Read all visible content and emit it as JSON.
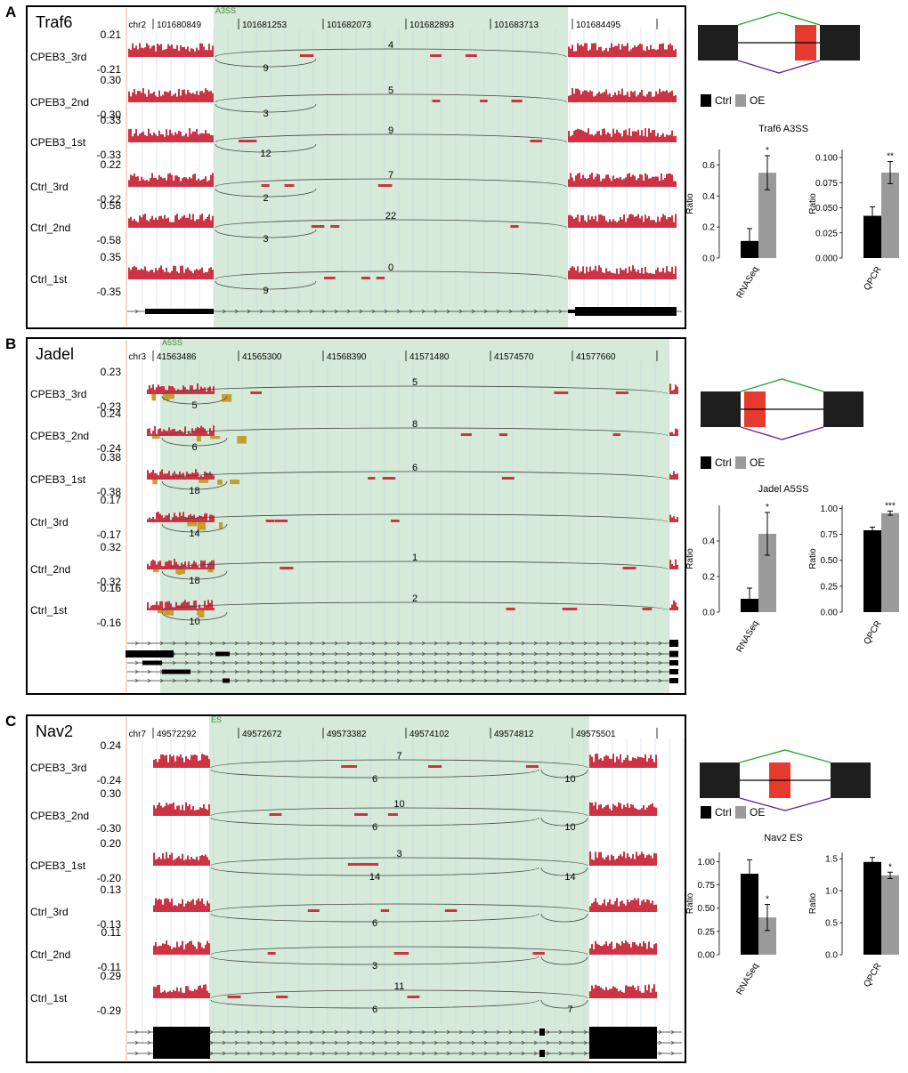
{
  "colors": {
    "cov": "#cc3344",
    "neg": "#c2a030",
    "shade": "#d5ead8",
    "ctrl": "#000000",
    "oe": "#9a9a9a",
    "green": "#2aa62a",
    "purple": "#5b2c8f",
    "exon_alt": "#e63a2e",
    "exon": "#1e1e1e"
  },
  "panels": [
    {
      "label": "A",
      "gene": "Traf6",
      "chrom": "chr2",
      "event": "A3SS",
      "ticks": [
        "101680849",
        "101681253",
        "101682073",
        "101682893",
        "101683713",
        "101684495"
      ],
      "samples": [
        {
          "name": "CPEB3_3rd",
          "top": "0.21",
          "bot": "-0.21",
          "j1": "4",
          "j2": "9"
        },
        {
          "name": "CPEB3_2nd",
          "top": "0.30",
          "bot": "-0.30",
          "j1": "5",
          "j2": "3"
        },
        {
          "name": "CPEB3_1st",
          "top": "0.33",
          "bot": "-0.33",
          "j1": "9",
          "j2": "12"
        },
        {
          "name": "Ctrl_3rd",
          "top": "0.22",
          "bot": "-0.22",
          "j1": "7",
          "j2": "2"
        },
        {
          "name": "Ctrl_2nd",
          "top": "0.58",
          "bot": "-0.58",
          "j1": "22",
          "j2": "3"
        },
        {
          "name": "Ctrl_1st",
          "top": "0.35",
          "bot": "-0.35",
          "j1": "0",
          "j2": "9"
        }
      ],
      "legend": [
        "Ctrl",
        "OE"
      ],
      "chart_title": "Traf6 A3SS",
      "bars": [
        {
          "xlabel": "RNASeq",
          "ylabel": "Ratio",
          "yticks": [
            "0.0",
            "0.2",
            "0.4",
            "0.6"
          ],
          "ymax": 0.7,
          "ctrl": 0.11,
          "oe": 0.55,
          "ctrl_err": 0.08,
          "oe_err": 0.11,
          "sig": "*"
        },
        {
          "xlabel": "QPCR",
          "ylabel": "Ratio",
          "yticks": [
            "0.000",
            "0.025",
            "0.050",
            "0.075",
            "0.100"
          ],
          "ymax": 0.108,
          "ctrl": 0.042,
          "oe": 0.085,
          "ctrl_err": 0.009,
          "oe_err": 0.011,
          "sig": "**"
        }
      ]
    },
    {
      "label": "B",
      "gene": "Jadel",
      "chrom": "chr3",
      "event": "A5SS",
      "ticks": [
        "41563486",
        "41565300",
        "41568390",
        "41571480",
        "41574570",
        "41577660"
      ],
      "samples": [
        {
          "name": "CPEB3_3rd",
          "top": "0.23",
          "bot": "-0.23",
          "j1": "5",
          "j2": "5"
        },
        {
          "name": "CPEB3_2nd",
          "top": "0.24",
          "bot": "-0.24",
          "j1": "8",
          "j2": "6"
        },
        {
          "name": "CPEB3_1st",
          "top": "0.38",
          "bot": "-0.38",
          "j1": "6",
          "j2": "18"
        },
        {
          "name": "Ctrl_3rd",
          "top": "0.17",
          "bot": "-0.17",
          "j1": "",
          "j2": "14"
        },
        {
          "name": "Ctrl_2nd",
          "top": "0.32",
          "bot": "-0.32",
          "j1": "1",
          "j2": "18"
        },
        {
          "name": "Ctrl_1st",
          "top": "0.16",
          "bot": "-0.16",
          "j1": "2",
          "j2": "10"
        }
      ],
      "legend": [
        "Ctrl",
        "OE"
      ],
      "chart_title": "Jadel A5SS",
      "bars": [
        {
          "xlabel": "RNASeq",
          "ylabel": "Ratio",
          "yticks": [
            "0.0",
            "0.2",
            "0.4"
          ],
          "ymax": 0.6,
          "ctrl": 0.075,
          "oe": 0.44,
          "ctrl_err": 0.06,
          "oe_err": 0.12,
          "sig": "*"
        },
        {
          "xlabel": "QPCR",
          "ylabel": "Ratio",
          "yticks": [
            "0.00",
            "0.25",
            "0.50",
            "0.75",
            "1.00"
          ],
          "ymax": 1.03,
          "ctrl": 0.79,
          "oe": 0.955,
          "ctrl_err": 0.03,
          "oe_err": 0.02,
          "sig": "***"
        }
      ]
    },
    {
      "label": "C",
      "gene": "Nav2",
      "chrom": "chr7",
      "event": "ES",
      "ticks": [
        "49572292",
        "49572672",
        "49573382",
        "49574102",
        "49574812",
        "49575501"
      ],
      "samples": [
        {
          "name": "CPEB3_3rd",
          "top": "0.24",
          "bot": "-0.24",
          "j1": "7",
          "j2": "6",
          "j3": "10"
        },
        {
          "name": "CPEB3_2nd",
          "top": "0.30",
          "bot": "-0.30",
          "j1": "10",
          "j2": "6",
          "j3": "10"
        },
        {
          "name": "CPEB3_1st",
          "top": "0.20",
          "bot": "-0.20",
          "j1": "3",
          "j2": "14",
          "j3": "14"
        },
        {
          "name": "Ctrl_3rd",
          "top": "0.13",
          "bot": "-0.13",
          "j1": "",
          "j2": "6",
          "j3": ""
        },
        {
          "name": "Ctrl_2nd",
          "top": "0.11",
          "bot": "-0.11",
          "j1": "",
          "j2": "3",
          "j3": ""
        },
        {
          "name": "Ctrl_1st",
          "top": "0.29",
          "bot": "-0.29",
          "j1": "11",
          "j2": "6",
          "j3": "7"
        }
      ],
      "legend": [
        "Ctrl",
        "OE"
      ],
      "chart_title": "Nav2 ES",
      "bars": [
        {
          "xlabel": "RNASeq",
          "ylabel": "Ratio",
          "yticks": [
            "0.00",
            "0.25",
            "0.50",
            "0.75",
            "1.00"
          ],
          "ymax": 1.1,
          "ctrl": 0.87,
          "oe": 0.4,
          "ctrl_err": 0.15,
          "oe_err": 0.14,
          "sig": "*"
        },
        {
          "xlabel": "QPCR",
          "ylabel": "Ratio",
          "yticks": [
            "0.0",
            "0.5",
            "1.0",
            "1.5"
          ],
          "ymax": 1.6,
          "ctrl": 1.45,
          "oe": 1.24,
          "ctrl_err": 0.07,
          "oe_err": 0.05,
          "sig": "*"
        }
      ]
    }
  ]
}
